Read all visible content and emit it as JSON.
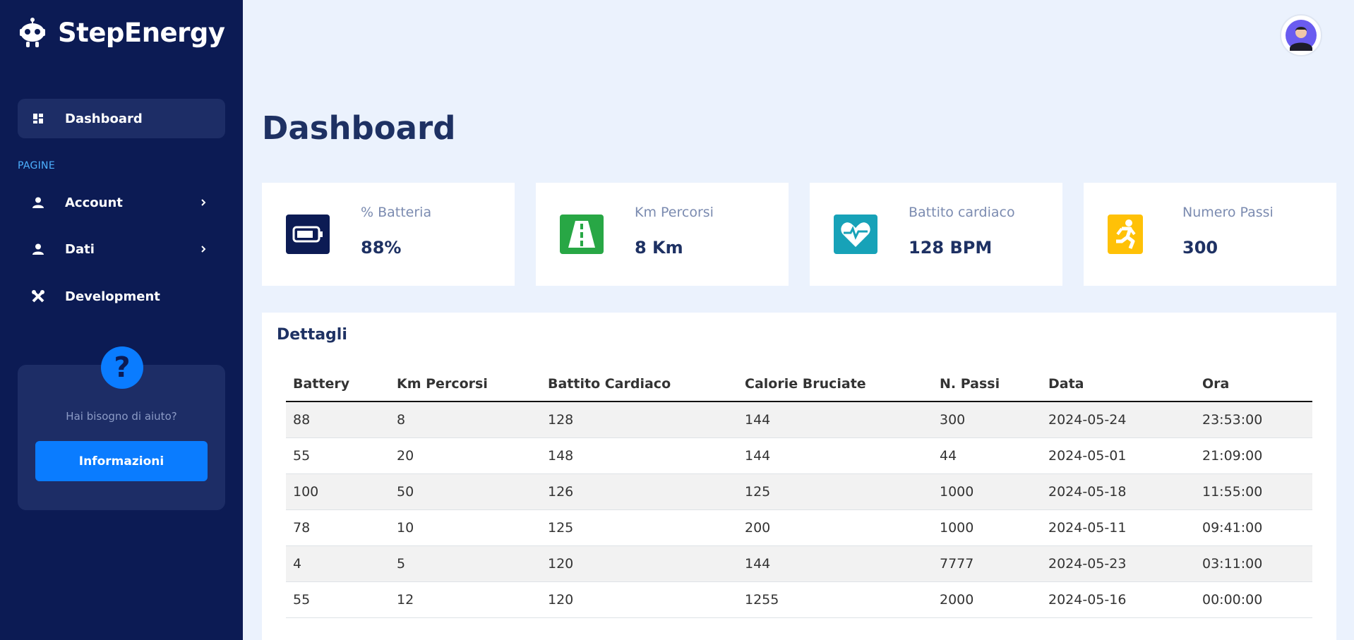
{
  "brand": {
    "name": "StepEnergy"
  },
  "sidebar": {
    "dashboard_label": "Dashboard",
    "section_label": "PAGINE",
    "items": [
      {
        "label": "Account",
        "icon": "user-icon",
        "has_submenu": true
      },
      {
        "label": "Dati",
        "icon": "user-icon",
        "has_submenu": true
      },
      {
        "label": "Development",
        "icon": "tools-icon",
        "has_submenu": false
      }
    ],
    "help": {
      "text": "Hai bisogno di aiuto?",
      "button_label": "Informazioni",
      "badge": "?"
    }
  },
  "page": {
    "title": "Dashboard"
  },
  "stats": [
    {
      "label": "% Batteria",
      "value": "88%",
      "icon": "battery-icon",
      "color": "#0c1b54"
    },
    {
      "label": "Km Percorsi",
      "value": "8 Km",
      "icon": "road-icon",
      "color": "#28a745"
    },
    {
      "label": "Battito cardiaco",
      "value": "128 BPM",
      "icon": "heart-pulse-icon",
      "color": "#17a2b8"
    },
    {
      "label": "Numero Passi",
      "value": "300",
      "icon": "running-icon",
      "color": "#ffc107"
    }
  ],
  "details": {
    "title": "Dettagli",
    "columns": [
      "Battery",
      "Km Percorsi",
      "Battito Cardiaco",
      "Calorie Bruciate",
      "N. Passi",
      "Data",
      "Ora"
    ],
    "rows": [
      [
        "88",
        "8",
        "128",
        "144",
        "300",
        "2024-05-24",
        "23:53:00"
      ],
      [
        "55",
        "20",
        "148",
        "144",
        "44",
        "2024-05-01",
        "21:09:00"
      ],
      [
        "100",
        "50",
        "126",
        "125",
        "1000",
        "2024-05-18",
        "11:55:00"
      ],
      [
        "78",
        "10",
        "125",
        "200",
        "1000",
        "2024-05-11",
        "09:41:00"
      ],
      [
        "4",
        "5",
        "120",
        "144",
        "7777",
        "2024-05-23",
        "03:11:00"
      ],
      [
        "55",
        "12",
        "120",
        "1255",
        "2000",
        "2024-05-16",
        "00:00:00"
      ]
    ]
  }
}
